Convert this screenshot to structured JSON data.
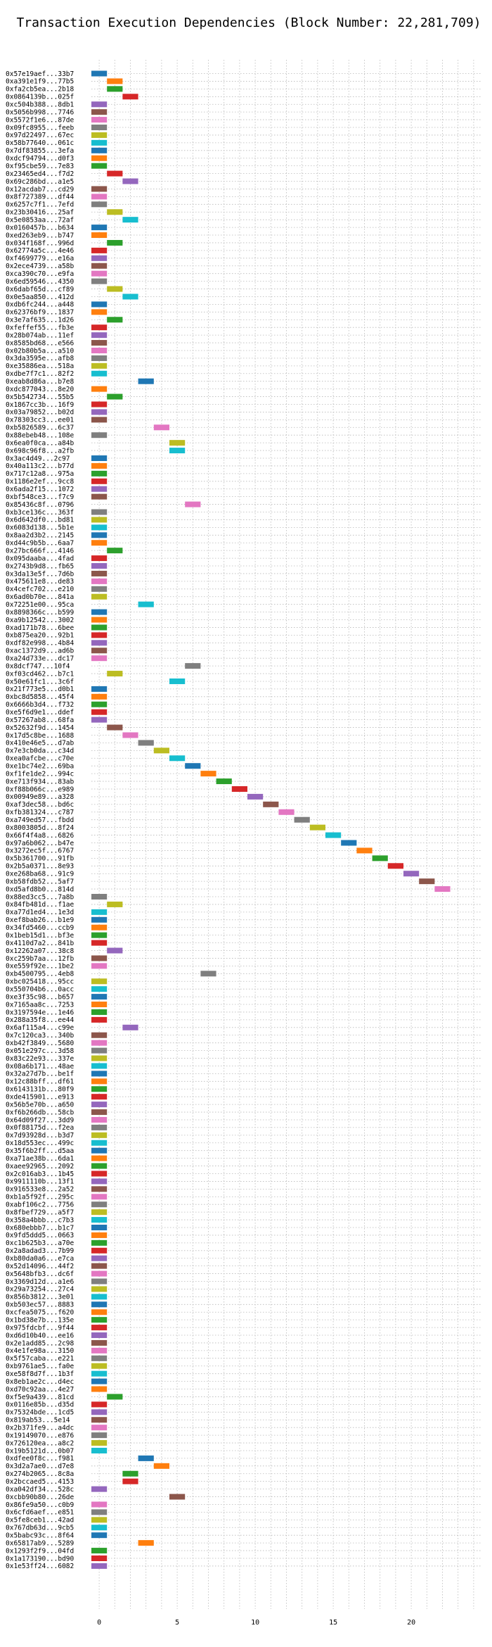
{
  "chart_data": {
    "type": "bar",
    "orientation": "horizontal",
    "title": "Transaction Execution Dependencies (Block Number: 22,281,709)",
    "xlabel": "",
    "ylabel": "",
    "xlim": [
      -0.5,
      24.5
    ],
    "xticks": [
      0,
      5,
      10,
      15,
      20
    ],
    "grid": true,
    "palette": [
      "#1f77b4",
      "#ff7f0e",
      "#2ca02c",
      "#d62728",
      "#9467bd",
      "#8c564b",
      "#e377c2",
      "#7f7f7f",
      "#bcbd22",
      "#17becf"
    ],
    "bar_width": 1,
    "bars": [
      {
        "tx": "0x57e19aef...33b7",
        "x": 0,
        "color": 0
      },
      {
        "tx": "0xa391e1f9...77b5",
        "x": 1,
        "color": 1
      },
      {
        "tx": "0xfa2cb5ea...2b18",
        "x": 1,
        "color": 2
      },
      {
        "tx": "0x0864139b...025f",
        "x": 2,
        "color": 3
      },
      {
        "tx": "0xc504b388...8db1",
        "x": 0,
        "color": 4
      },
      {
        "tx": "0x5056b998...7746",
        "x": 0,
        "color": 5
      },
      {
        "tx": "0x5572f1e6...87de",
        "x": 0,
        "color": 6
      },
      {
        "tx": "0x09fc8955...feeb",
        "x": 0,
        "color": 7
      },
      {
        "tx": "0x97d22497...67ec",
        "x": 0,
        "color": 8
      },
      {
        "tx": "0x58b77640...061c",
        "x": 0,
        "color": 9
      },
      {
        "tx": "0x7df83855...3efa",
        "x": 0,
        "color": 0
      },
      {
        "tx": "0xdcf94794...d0f3",
        "x": 0,
        "color": 1
      },
      {
        "tx": "0xf95cbe59...7e83",
        "x": 0,
        "color": 2
      },
      {
        "tx": "0x23465ed4...f7d2",
        "x": 1,
        "color": 3
      },
      {
        "tx": "0x69c286bd...a1e5",
        "x": 2,
        "color": 4
      },
      {
        "tx": "0x12acdab7...cd29",
        "x": 0,
        "color": 5
      },
      {
        "tx": "0x8f727389...df44",
        "x": 0,
        "color": 6
      },
      {
        "tx": "0x6257c7f1...7efd",
        "x": 0,
        "color": 7
      },
      {
        "tx": "0x23b30416...25af",
        "x": 1,
        "color": 8
      },
      {
        "tx": "0x5e0853aa...72af",
        "x": 2,
        "color": 9
      },
      {
        "tx": "0x0160457b...b634",
        "x": 0,
        "color": 0
      },
      {
        "tx": "0xed263eb9...b747",
        "x": 0,
        "color": 1
      },
      {
        "tx": "0x034f168f...996d",
        "x": 1,
        "color": 2
      },
      {
        "tx": "0x62774a5c...4e46",
        "x": 0,
        "color": 3
      },
      {
        "tx": "0xf4699779...e16a",
        "x": 0,
        "color": 4
      },
      {
        "tx": "0x2ece4739...a58b",
        "x": 0,
        "color": 5
      },
      {
        "tx": "0xca390c70...e9fa",
        "x": 0,
        "color": 6
      },
      {
        "tx": "0x6ed59546...4350",
        "x": 0,
        "color": 7
      },
      {
        "tx": "0x6dabf65d...cf89",
        "x": 1,
        "color": 8
      },
      {
        "tx": "0x0e5aa850...412d",
        "x": 2,
        "color": 9
      },
      {
        "tx": "0xdb6fc244...a448",
        "x": 0,
        "color": 0
      },
      {
        "tx": "0x62376bf9...1837",
        "x": 0,
        "color": 1
      },
      {
        "tx": "0x3e7af635...1d26",
        "x": 1,
        "color": 2
      },
      {
        "tx": "0xfeffef55...fb3e",
        "x": 0,
        "color": 3
      },
      {
        "tx": "0x28b074ab...11ef",
        "x": 0,
        "color": 4
      },
      {
        "tx": "0x8585bd68...e566",
        "x": 0,
        "color": 5
      },
      {
        "tx": "0x02b80b5a...a510",
        "x": 0,
        "color": 6
      },
      {
        "tx": "0x3da3595e...afb8",
        "x": 0,
        "color": 7
      },
      {
        "tx": "0xe35886ea...518a",
        "x": 0,
        "color": 8
      },
      {
        "tx": "0xdbe7f7c1...82f2",
        "x": 0,
        "color": 9
      },
      {
        "tx": "0xeab8d86a...b7e8",
        "x": 3,
        "color": 0
      },
      {
        "tx": "0xdc877043...8e20",
        "x": 0,
        "color": 1
      },
      {
        "tx": "0x5b542734...55b5",
        "x": 1,
        "color": 2
      },
      {
        "tx": "0x1867cc3b...16f9",
        "x": 0,
        "color": 3
      },
      {
        "tx": "0x03a79852...b02d",
        "x": 0,
        "color": 4
      },
      {
        "tx": "0x78303cc3...ee01",
        "x": 0,
        "color": 5
      },
      {
        "tx": "0xb5826589...6c37",
        "x": 4,
        "color": 6
      },
      {
        "tx": "0x88ebeb48...108e",
        "x": 0,
        "color": 7
      },
      {
        "tx": "0x6ea0f0ca...a84b",
        "x": 5,
        "color": 8
      },
      {
        "tx": "0x698c96f8...a2fb",
        "x": 5,
        "color": 9
      },
      {
        "tx": "0x3ac4d49...2c97",
        "x": 0,
        "color": 0
      },
      {
        "tx": "0x40a113c2...b77d",
        "x": 0,
        "color": 1
      },
      {
        "tx": "0x717c12a8...975a",
        "x": 0,
        "color": 2
      },
      {
        "tx": "0x1186e2ef...9cc8",
        "x": 0,
        "color": 3
      },
      {
        "tx": "0x6ada2f15...1072",
        "x": 0,
        "color": 4
      },
      {
        "tx": "0xbf548ce3...f7c9",
        "x": 0,
        "color": 5
      },
      {
        "tx": "0x85436c8f...0796",
        "x": 6,
        "color": 6
      },
      {
        "tx": "0xb3ce136c...363f",
        "x": 0,
        "color": 7
      },
      {
        "tx": "0x6d642df0...bd81",
        "x": 0,
        "color": 8
      },
      {
        "tx": "0x6083d138...5b1e",
        "x": 0,
        "color": 9
      },
      {
        "tx": "0x8aa2d3b2...2145",
        "x": 0,
        "color": 0
      },
      {
        "tx": "0xd44c9b5b...6aa7",
        "x": 0,
        "color": 1
      },
      {
        "tx": "0x27bc666f...4146",
        "x": 1,
        "color": 2
      },
      {
        "tx": "0x095daaba...4fad",
        "x": 0,
        "color": 3
      },
      {
        "tx": "0x2743b9d8...fb65",
        "x": 0,
        "color": 4
      },
      {
        "tx": "0x3da13e5f...7d6b",
        "x": 0,
        "color": 5
      },
      {
        "tx": "0x475611e8...de83",
        "x": 0,
        "color": 6
      },
      {
        "tx": "0x4cefc702...e210",
        "x": 0,
        "color": 7
      },
      {
        "tx": "0x6ad0b70e...841a",
        "x": 0,
        "color": 8
      },
      {
        "tx": "0x72251e00...95ca",
        "x": 3,
        "color": 9
      },
      {
        "tx": "0x8898366c...b599",
        "x": 0,
        "color": 0
      },
      {
        "tx": "0xa9b12542...3002",
        "x": 0,
        "color": 1
      },
      {
        "tx": "0xad171b78...6bee",
        "x": 0,
        "color": 2
      },
      {
        "tx": "0xb875ea20...92b1",
        "x": 0,
        "color": 3
      },
      {
        "tx": "0xdf82e998...4b84",
        "x": 0,
        "color": 4
      },
      {
        "tx": "0xac1372d9...ad6b",
        "x": 0,
        "color": 5
      },
      {
        "tx": "0xa24d733e...dc17",
        "x": 0,
        "color": 6
      },
      {
        "tx": "0x8dcf747...10f4",
        "x": 6,
        "color": 7
      },
      {
        "tx": "0xf03cd462...b7c1",
        "x": 1,
        "color": 8
      },
      {
        "tx": "0x50e61fc1...3c6f",
        "x": 5,
        "color": 9
      },
      {
        "tx": "0x21f773e5...d0b1",
        "x": 0,
        "color": 0
      },
      {
        "tx": "0xbc8d5858...45f4",
        "x": 0,
        "color": 1
      },
      {
        "tx": "0x6666b3d4...f732",
        "x": 0,
        "color": 2
      },
      {
        "tx": "0xe5f6d9e1...ddef",
        "x": 0,
        "color": 3
      },
      {
        "tx": "0x57267ab8...68fa",
        "x": 0,
        "color": 4
      },
      {
        "tx": "0x52632f9d...1454",
        "x": 1,
        "color": 5
      },
      {
        "tx": "0x17d5c8be...1688",
        "x": 2,
        "color": 6
      },
      {
        "tx": "0x410e46e5...d7ab",
        "x": 3,
        "color": 7
      },
      {
        "tx": "0x7e3cb0da...c34d",
        "x": 4,
        "color": 8
      },
      {
        "tx": "0xea0afcbe...c70e",
        "x": 5,
        "color": 9
      },
      {
        "tx": "0xe1bc74e2...69ba",
        "x": 6,
        "color": 0
      },
      {
        "tx": "0xf1fe1de2...994c",
        "x": 7,
        "color": 1
      },
      {
        "tx": "0xe713f934...83ab",
        "x": 8,
        "color": 2
      },
      {
        "tx": "0xf88b066c...e989",
        "x": 9,
        "color": 3
      },
      {
        "tx": "0x00949e89...a328",
        "x": 10,
        "color": 4
      },
      {
        "tx": "0xaf3dec58...bd6c",
        "x": 11,
        "color": 5
      },
      {
        "tx": "0xfb381324...c787",
        "x": 12,
        "color": 6
      },
      {
        "tx": "0xa749ed57...fbdd",
        "x": 13,
        "color": 7
      },
      {
        "tx": "0x8003805d...8f24",
        "x": 14,
        "color": 8
      },
      {
        "tx": "0x66f4f4a8...6826",
        "x": 15,
        "color": 9
      },
      {
        "tx": "0x97a6b062...b47e",
        "x": 16,
        "color": 0
      },
      {
        "tx": "0x3272ec5f...6767",
        "x": 17,
        "color": 1
      },
      {
        "tx": "0x5b361700...91fb",
        "x": 18,
        "color": 2
      },
      {
        "tx": "0x2b5a0371...8e93",
        "x": 19,
        "color": 3
      },
      {
        "tx": "0xe268ba68...91c9",
        "x": 20,
        "color": 4
      },
      {
        "tx": "0xb58fdb52...5af7",
        "x": 21,
        "color": 5
      },
      {
        "tx": "0xd5afd8b0...814d",
        "x": 22,
        "color": 6
      },
      {
        "tx": "0x88ed3cc5...7a8b",
        "x": 0,
        "color": 7
      },
      {
        "tx": "0x84fb481d...f1ae",
        "x": 1,
        "color": 8
      },
      {
        "tx": "0xa77d1ed4...1e3d",
        "x": 0,
        "color": 9
      },
      {
        "tx": "0xef8bab26...b1e9",
        "x": 0,
        "color": 0
      },
      {
        "tx": "0x34fd5460...ccb9",
        "x": 0,
        "color": 1
      },
      {
        "tx": "0x1beb15d1...bf3e",
        "x": 0,
        "color": 2
      },
      {
        "tx": "0x4110d7a2...841b",
        "x": 0,
        "color": 3
      },
      {
        "tx": "0x12262a07...38c8",
        "x": 1,
        "color": 4
      },
      {
        "tx": "0xc259b7aa...12fb",
        "x": 0,
        "color": 5
      },
      {
        "tx": "0xe559f92e...1be2",
        "x": 0,
        "color": 6
      },
      {
        "tx": "0xb4500795...4eb8",
        "x": 7,
        "color": 7
      },
      {
        "tx": "0xbc025418...95cc",
        "x": 0,
        "color": 8
      },
      {
        "tx": "0x550704b6...0acc",
        "x": 0,
        "color": 9
      },
      {
        "tx": "0xe3f35c98...b657",
        "x": 0,
        "color": 0
      },
      {
        "tx": "0x7165aa8c...7253",
        "x": 0,
        "color": 1
      },
      {
        "tx": "0x3197594e...1e46",
        "x": 0,
        "color": 2
      },
      {
        "tx": "0x288a35f8...ee44",
        "x": 0,
        "color": 3
      },
      {
        "tx": "0x6af115a4...c99e",
        "x": 2,
        "color": 4
      },
      {
        "tx": "0x7c120ca3...340b",
        "x": 0,
        "color": 5
      },
      {
        "tx": "0xb42f3849...5680",
        "x": 0,
        "color": 6
      },
      {
        "tx": "0x051e297c...3d58",
        "x": 0,
        "color": 7
      },
      {
        "tx": "0x83c22e93...337e",
        "x": 0,
        "color": 8
      },
      {
        "tx": "0x08a6b171...48ae",
        "x": 0,
        "color": 9
      },
      {
        "tx": "0x32a27d7b...be1f",
        "x": 0,
        "color": 0
      },
      {
        "tx": "0x12c88bff...df61",
        "x": 0,
        "color": 1
      },
      {
        "tx": "0x6143131b...80f9",
        "x": 0,
        "color": 2
      },
      {
        "tx": "0xde415901...e913",
        "x": 0,
        "color": 3
      },
      {
        "tx": "0x56b5e70b...a650",
        "x": 0,
        "color": 4
      },
      {
        "tx": "0xf6b266db...58cb",
        "x": 0,
        "color": 5
      },
      {
        "tx": "0x64d09f27...3dd9",
        "x": 0,
        "color": 6
      },
      {
        "tx": "0x0f88175d...f2ea",
        "x": 0,
        "color": 7
      },
      {
        "tx": "0x7d93928d...b3d7",
        "x": 0,
        "color": 8
      },
      {
        "tx": "0x18d553ec...499c",
        "x": 0,
        "color": 9
      },
      {
        "tx": "0x35f6b2ff...d5aa",
        "x": 0,
        "color": 0
      },
      {
        "tx": "0xa71ae38b...6da1",
        "x": 0,
        "color": 1
      },
      {
        "tx": "0xaee92965...2092",
        "x": 0,
        "color": 2
      },
      {
        "tx": "0x2c016ab3...1b45",
        "x": 0,
        "color": 3
      },
      {
        "tx": "0x9911110b...13f1",
        "x": 0,
        "color": 4
      },
      {
        "tx": "0x916533e8...2a52",
        "x": 0,
        "color": 5
      },
      {
        "tx": "0xb1a5f92f...295c",
        "x": 0,
        "color": 6
      },
      {
        "tx": "0xabf106c2...7756",
        "x": 0,
        "color": 7
      },
      {
        "tx": "0x8fbef729...a5f7",
        "x": 0,
        "color": 8
      },
      {
        "tx": "0x358a4bbb...c7b3",
        "x": 0,
        "color": 9
      },
      {
        "tx": "0x680ebbb7...b1c7",
        "x": 0,
        "color": 0
      },
      {
        "tx": "0x9fd5ddd5...0663",
        "x": 0,
        "color": 1
      },
      {
        "tx": "0xc1b625b3...a70e",
        "x": 0,
        "color": 2
      },
      {
        "tx": "0x2a8adad3...7b99",
        "x": 0,
        "color": 3
      },
      {
        "tx": "0xb80da0a6...e7ca",
        "x": 0,
        "color": 4
      },
      {
        "tx": "0x52d14096...44f2",
        "x": 0,
        "color": 5
      },
      {
        "tx": "0x5648bfb3...dc6f",
        "x": 0,
        "color": 6
      },
      {
        "tx": "0x3369d12d...a1e6",
        "x": 0,
        "color": 7
      },
      {
        "tx": "0x29a73254...27c4",
        "x": 0,
        "color": 8
      },
      {
        "tx": "0x856b3812...3e01",
        "x": 0,
        "color": 9
      },
      {
        "tx": "0xb503ec57...8883",
        "x": 0,
        "color": 0
      },
      {
        "tx": "0xcfea5075...f620",
        "x": 0,
        "color": 1
      },
      {
        "tx": "0x1bd38e7b...135e",
        "x": 0,
        "color": 2
      },
      {
        "tx": "0x975fdcbf...9f44",
        "x": 0,
        "color": 3
      },
      {
        "tx": "0xd6d10b40...ee16",
        "x": 0,
        "color": 4
      },
      {
        "tx": "0x2e1add85...2c98",
        "x": 0,
        "color": 5
      },
      {
        "tx": "0x4e1fe98a...3150",
        "x": 0,
        "color": 6
      },
      {
        "tx": "0x5f57caba...e221",
        "x": 0,
        "color": 7
      },
      {
        "tx": "0xb9761ae5...fa0e",
        "x": 0,
        "color": 8
      },
      {
        "tx": "0xe58f8d7f...1b3f",
        "x": 0,
        "color": 9
      },
      {
        "tx": "0x8eb1ae2c...d4ec",
        "x": 0,
        "color": 0
      },
      {
        "tx": "0xd70c92aa...4e27",
        "x": 0,
        "color": 1
      },
      {
        "tx": "0xf5e9a439...81cd",
        "x": 1,
        "color": 2
      },
      {
        "tx": "0x0116e85b...d35d",
        "x": 0,
        "color": 3
      },
      {
        "tx": "0x75324bde...1cd5",
        "x": 0,
        "color": 4
      },
      {
        "tx": "0x819ab53...5e14",
        "x": 0,
        "color": 5
      },
      {
        "tx": "0x2b371fe9...a4dc",
        "x": 0,
        "color": 6
      },
      {
        "tx": "0x19149070...e876",
        "x": 0,
        "color": 7
      },
      {
        "tx": "0x726120ea...a8c2",
        "x": 0,
        "color": 8
      },
      {
        "tx": "0x19b5121d...0b07",
        "x": 0,
        "color": 9
      },
      {
        "tx": "0xdfee0f8c...f981",
        "x": 3,
        "color": 0
      },
      {
        "tx": "0x3d2a7ae0...d7e8",
        "x": 4,
        "color": 1
      },
      {
        "tx": "0x274b2065...8c8a",
        "x": 2,
        "color": 2
      },
      {
        "tx": "0x2bccaed5...4153",
        "x": 2,
        "color": 3
      },
      {
        "tx": "0xa042df34...528c",
        "x": 0,
        "color": 4
      },
      {
        "tx": "0xcbb90b80...26de",
        "x": 5,
        "color": 5
      },
      {
        "tx": "0x86fe9a50...c0b9",
        "x": 0,
        "color": 6
      },
      {
        "tx": "0x6cfd6aef...e851",
        "x": 0,
        "color": 7
      },
      {
        "tx": "0x5fe8ceb1...42ad",
        "x": 0,
        "color": 8
      },
      {
        "tx": "0x767db63d...9cb5",
        "x": 0,
        "color": 9
      },
      {
        "tx": "0x5babc93c...8f64",
        "x": 0,
        "color": 0
      },
      {
        "tx": "0x65817ab9...5289",
        "x": 3,
        "color": 1
      },
      {
        "tx": "0x1293f2f9...04fd",
        "x": 0,
        "color": 2
      },
      {
        "tx": "0x1a173190...bd90",
        "x": 0,
        "color": 3
      },
      {
        "tx": "0x1e53ff24...6082",
        "x": 0,
        "color": 4
      }
    ]
  }
}
